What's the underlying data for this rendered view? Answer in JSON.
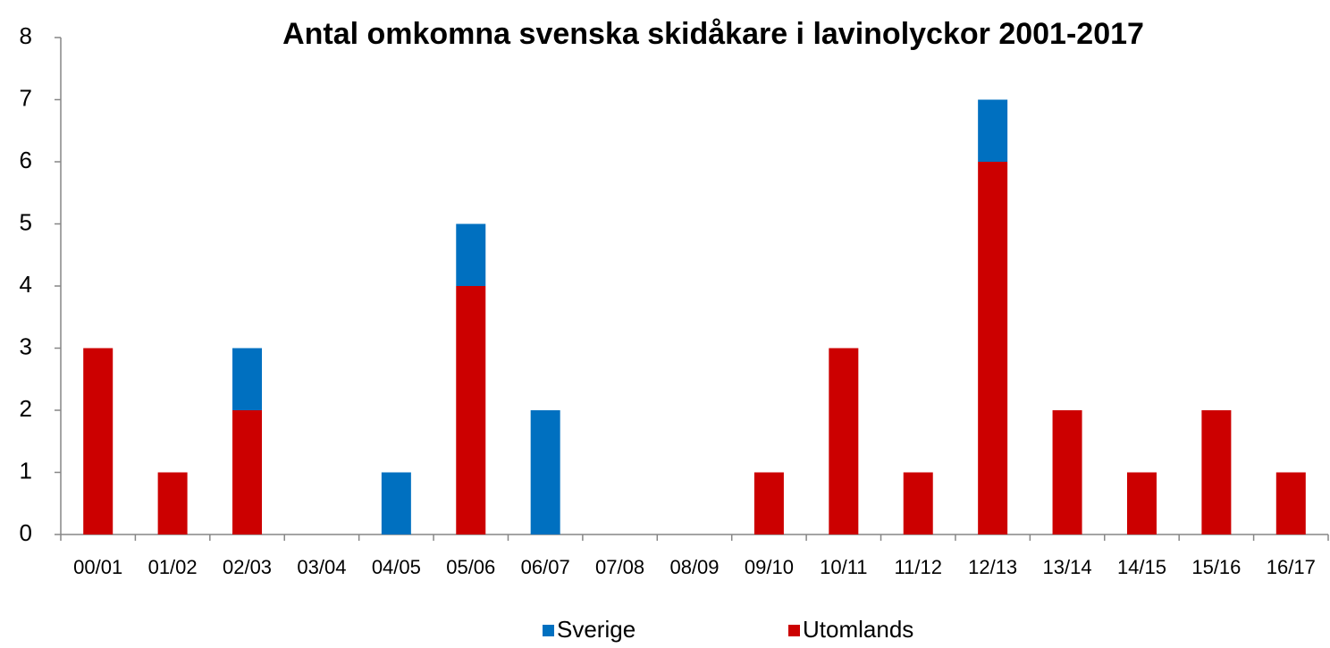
{
  "chart_data": {
    "type": "stacked_bar",
    "title": "Antal omkomna svenska skidåkare i lavinolyckor 2001-2017",
    "categories": [
      "00/01",
      "01/02",
      "02/03",
      "03/04",
      "04/05",
      "05/06",
      "06/07",
      "07/08",
      "08/09",
      "09/10",
      "10/11",
      "11/12",
      "12/13",
      "13/14",
      "14/15",
      "15/16",
      "16/17"
    ],
    "series": [
      {
        "name": "Sverige",
        "color": "#0070c0",
        "values": [
          0,
          0,
          1,
          0,
          1,
          1,
          2,
          0,
          0,
          0,
          0,
          0,
          1,
          0,
          0,
          0,
          0
        ]
      },
      {
        "name": "Utomlands",
        "color": "#cc0000",
        "values": [
          3,
          1,
          2,
          0,
          0,
          4,
          0,
          0,
          0,
          1,
          3,
          1,
          6,
          2,
          1,
          2,
          1
        ]
      }
    ],
    "ylim": [
      0,
      8
    ],
    "yticks": [
      0,
      1,
      2,
      3,
      4,
      5,
      6,
      7,
      8
    ],
    "grid": false,
    "legend": "bottom"
  }
}
